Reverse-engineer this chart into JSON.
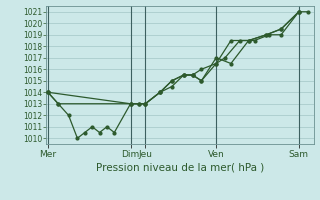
{
  "title": "",
  "xlabel": "Pression niveau de la mer( hPa )",
  "bg_color": "#cce8e8",
  "grid_color": "#aacccc",
  "line_color": "#2d5a2d",
  "ylim": [
    1009.5,
    1021.5
  ],
  "yticks": [
    1010,
    1011,
    1012,
    1013,
    1014,
    1015,
    1016,
    1017,
    1018,
    1019,
    1020,
    1021
  ],
  "x_day_labels": [
    "Mer",
    "Dim",
    "Jeu",
    "Ven",
    "Sam"
  ],
  "x_day_positions": [
    0.0,
    2.8,
    3.3,
    5.7,
    8.5
  ],
  "x_vlines": [
    0.0,
    2.8,
    3.3,
    5.7,
    8.5
  ],
  "xlim": [
    -0.05,
    9.0
  ],
  "lines": [
    {
      "x": [
        0.0,
        0.35,
        0.7,
        1.0,
        1.25,
        1.5,
        1.75,
        2.0,
        2.25,
        2.8,
        3.1,
        3.3,
        3.8,
        4.2,
        4.6,
        4.9,
        5.2,
        5.7,
        6.0,
        6.5,
        7.0,
        7.5,
        7.9,
        8.5,
        8.8
      ],
      "y": [
        1014,
        1013,
        1012,
        1010,
        1010.5,
        1011,
        1010.5,
        1011,
        1010.5,
        1013,
        1013,
        1013,
        1014,
        1015,
        1015.5,
        1015.5,
        1015,
        1016.5,
        1017,
        1018.5,
        1018.5,
        1019,
        1019,
        1021,
        1021
      ]
    },
    {
      "x": [
        0.0,
        0.35,
        2.8,
        3.1,
        3.3,
        3.8,
        4.2,
        4.6,
        4.9,
        5.2,
        5.7,
        6.2,
        6.8,
        7.4,
        7.9,
        8.5
      ],
      "y": [
        1014,
        1013,
        1013,
        1013,
        1013,
        1014,
        1015,
        1015.5,
        1015.5,
        1015,
        1017,
        1016.5,
        1018.5,
        1019,
        1019.5,
        1021
      ]
    },
    {
      "x": [
        0.0,
        2.8,
        3.3,
        3.8,
        4.2,
        4.6,
        4.9,
        5.2,
        5.7,
        6.2,
        6.8,
        7.4,
        7.9,
        8.5
      ],
      "y": [
        1014,
        1013,
        1013,
        1014,
        1014.5,
        1015.5,
        1015.5,
        1016,
        1016.5,
        1018.5,
        1018.5,
        1019,
        1019.5,
        1021
      ]
    }
  ]
}
